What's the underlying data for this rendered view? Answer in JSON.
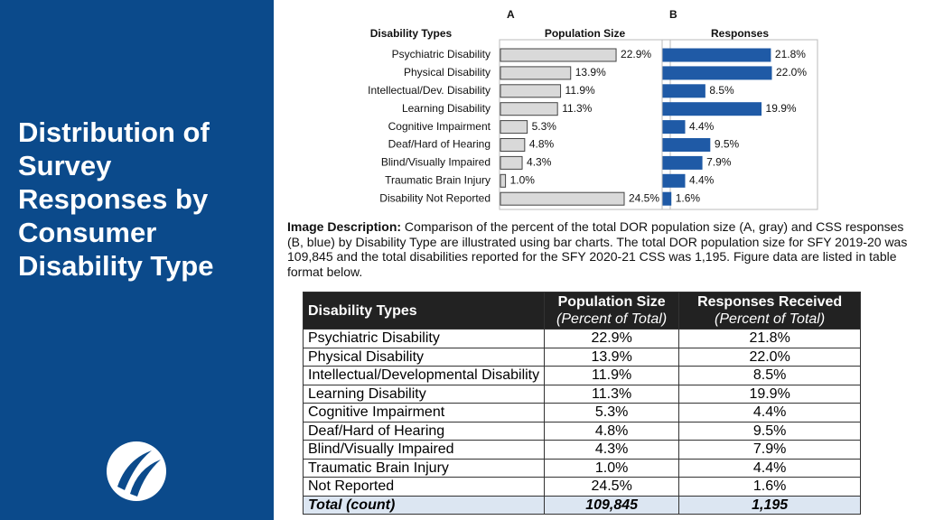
{
  "slide_title": "Distribution of Survey Responses by Consumer Disability Type",
  "chart_data": [
    {
      "type": "bar",
      "orientation": "horizontal",
      "panel": "A",
      "title": "Population Size",
      "category_label": "Disability Types",
      "categories": [
        "Psychiatric Disability",
        "Physical Disability",
        "Intellectual/Dev. Disability",
        "Learning Disability",
        "Cognitive Impairment",
        "Deaf/Hard of Hearing",
        "Blind/Visually Impaired",
        "Traumatic Brain Injury",
        "Disability Not Reported"
      ],
      "values": [
        22.9,
        13.9,
        11.9,
        11.3,
        5.3,
        4.8,
        4.3,
        1.0,
        24.5
      ],
      "value_labels": [
        "22.9%",
        "13.9%",
        "11.9%",
        "11.3%",
        "5.3%",
        "4.8%",
        "4.3%",
        "1.0%",
        "24.5%"
      ],
      "color": "#d9d9d9"
    },
    {
      "type": "bar",
      "orientation": "horizontal",
      "panel": "B",
      "title": "Responses",
      "values": [
        21.8,
        22.0,
        8.5,
        19.9,
        4.4,
        9.5,
        7.9,
        4.4,
        1.6
      ],
      "value_labels": [
        "21.8%",
        "22.0%",
        "8.5%",
        "19.9%",
        "4.4%",
        "9.5%",
        "7.9%",
        "4.4%",
        "1.6%"
      ],
      "color": "#1f5aa6"
    }
  ],
  "description": {
    "label": "Image Description:",
    "text": "Comparison of the percent of the total DOR population size (A, gray) and CSS responses (B, blue) by Disability Type are illustrated using bar charts. The total DOR population size for SFY 2019-20 was 109,845 and the total disabilities reported for the SFY 2020-21 CSS was 1,195. Figure data are listed in table format below."
  },
  "table": {
    "header": [
      {
        "title": "Disability Types"
      },
      {
        "title": "Population Size",
        "subtitle": "(Percent of Total)"
      },
      {
        "title": "Responses Received",
        "subtitle": "(Percent of Total)"
      }
    ],
    "rows": [
      [
        "Psychiatric Disability",
        "22.9%",
        "21.8%"
      ],
      [
        "Physical Disability",
        "13.9%",
        "22.0%"
      ],
      [
        "Intellectual/Developmental Disability",
        "11.9%",
        "8.5%"
      ],
      [
        "Learning Disability",
        "11.3%",
        "19.9%"
      ],
      [
        "Cognitive Impairment",
        "5.3%",
        "4.4%"
      ],
      [
        "Deaf/Hard of Hearing",
        "4.8%",
        "9.5%"
      ],
      [
        "Blind/Visually Impaired",
        "4.3%",
        "7.9%"
      ],
      [
        "Traumatic Brain Injury",
        "1.0%",
        "4.4%"
      ],
      [
        "Not Reported",
        "24.5%",
        "1.6%"
      ]
    ],
    "total": [
      "Total (count)",
      "109,845",
      "1,195"
    ]
  }
}
